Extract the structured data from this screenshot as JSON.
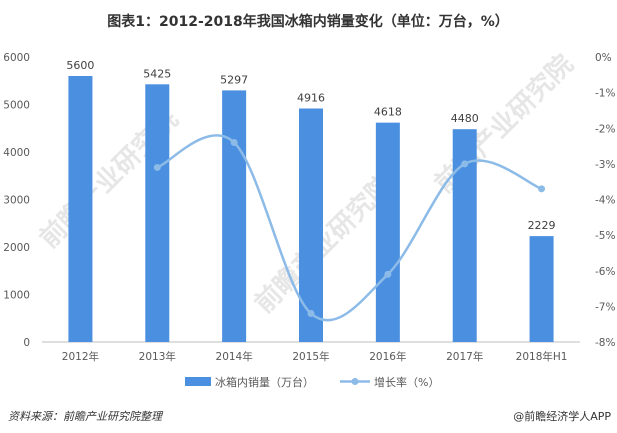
{
  "chart_data": {
    "type": "bar",
    "title": "图表1：2012-2018年我国冰箱内销量变化（单位：万台，%）",
    "categories": [
      "2012年",
      "2013年",
      "2014年",
      "2015年",
      "2016年",
      "2017年",
      "2018年H1"
    ],
    "series": [
      {
        "name": "冰箱内销量（万台）",
        "type": "bar",
        "axis": "left",
        "color": "#4a8fe0",
        "values": [
          5600,
          5425,
          5297,
          4916,
          4618,
          4480,
          2229
        ],
        "labels": [
          "5600",
          "5425",
          "5297",
          "4916",
          "4618",
          "4480",
          "2229"
        ]
      },
      {
        "name": "增长率（%）",
        "type": "line",
        "axis": "right",
        "color": "#8dbbe8",
        "values": [
          null,
          -3.1,
          -2.4,
          -7.2,
          -6.1,
          -3.0,
          -3.7
        ]
      }
    ],
    "y_left": {
      "min": 0,
      "max": 6000,
      "ticks": [
        "0",
        "1000",
        "2000",
        "3000",
        "4000",
        "5000",
        "6000"
      ]
    },
    "y_right": {
      "min": -8,
      "max": 0,
      "ticks": [
        "0%",
        "-1%",
        "-2%",
        "-3%",
        "-4%",
        "-5%",
        "-6%",
        "-7%",
        "-8%"
      ]
    },
    "grid": false,
    "legend_position": "bottom-center"
  },
  "footer": {
    "source": "资料来源：前瞻产业研究院整理",
    "brand": "@前瞻经济学人APP"
  },
  "watermark": "前瞻产业研究院"
}
